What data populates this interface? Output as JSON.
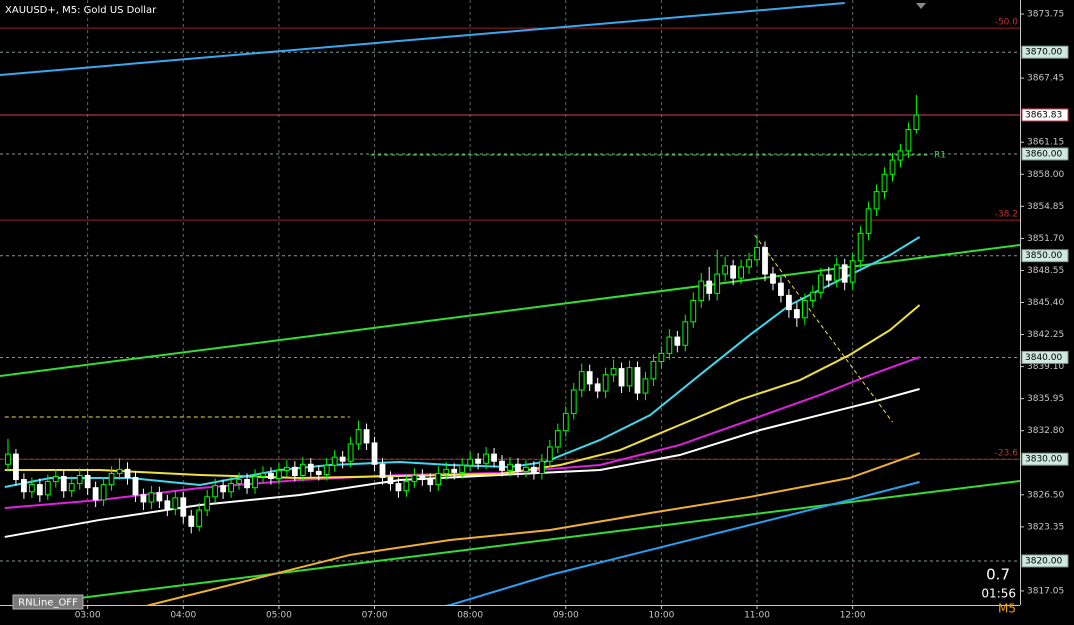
{
  "chart_data": {
    "type": "candlestick",
    "title": "XAUUSD+, M5:  Gold US Dollar",
    "categories": [
      null,
      null,
      null,
      null,
      null,
      null,
      null,
      null,
      null,
      null,
      "03:00",
      null,
      null,
      null,
      null,
      null,
      null,
      null,
      null,
      null,
      null,
      null,
      "04:00",
      null,
      null,
      null,
      null,
      null,
      null,
      null,
      null,
      null,
      null,
      null,
      "05:00",
      null,
      null,
      null,
      null,
      null,
      null,
      null,
      null,
      null,
      null,
      null,
      "07:00",
      null,
      null,
      null,
      null,
      null,
      null,
      null,
      null,
      null,
      null,
      null,
      "08:00",
      null,
      null,
      null,
      null,
      null,
      null,
      null,
      null,
      null,
      null,
      null,
      "09:00",
      null,
      null,
      null,
      null,
      null,
      null,
      null,
      null,
      null,
      null,
      null,
      "10:00",
      null,
      null,
      null,
      null,
      null,
      null,
      null,
      null,
      null,
      null,
      null,
      "11:00",
      null,
      null,
      null,
      null,
      null,
      null,
      null,
      null,
      null,
      null,
      null,
      "12:00",
      null,
      null,
      null,
      null,
      null,
      null,
      null,
      null
    ],
    "open": [
      3829.5,
      3830.5,
      3828.0,
      3826.8,
      3827.5,
      3826.5,
      3827.8,
      3828.3,
      3826.9,
      3827.6,
      3828.4,
      3827.2,
      3826.0,
      3827.5,
      3828.6,
      3829.0,
      3828.2,
      3826.5,
      3825.8,
      3826.7,
      3825.9,
      3825.1,
      3826.2,
      3824.4,
      3823.4,
      3825.0,
      3826.3,
      3827.4,
      3826.8,
      3827.6,
      3828.0,
      3827.2,
      3828.3,
      3828.6,
      3828.1,
      3828.9,
      3829.2,
      3828.4,
      3829.5,
      3828.8,
      3828.5,
      3829.4,
      3830.2,
      3829.8,
      3831.5,
      3832.9,
      3831.6,
      3829.5,
      3828.2,
      3827.6,
      3826.9,
      3827.8,
      3828.4,
      3828.0,
      3827.5,
      3828.6,
      3829.0,
      3828.7,
      3829.4,
      3830.0,
      3829.6,
      3830.5,
      3829.8,
      3828.9,
      3829.5,
      3828.8,
      3829.2,
      3828.6,
      3829.8,
      3831.2,
      3832.8,
      3834.5,
      3836.8,
      3838.6,
      3837.4,
      3836.7,
      3838.3,
      3838.9,
      3837.2,
      3839.0,
      3836.5,
      3837.9,
      3839.6,
      3840.4,
      3842.0,
      3841.2,
      3843.5,
      3845.6,
      3847.5,
      3846.3,
      3848.2,
      3849.0,
      3847.8,
      3848.9,
      3849.6,
      3850.8,
      3848.2,
      3847.3,
      3846.1,
      3844.7,
      3843.9,
      3845.6,
      3846.4,
      3848.1,
      3847.6,
      3849.1,
      3847.4,
      3849.5,
      3852.2,
      3854.6,
      3856.3,
      3858.0,
      3859.4,
      3860.3,
      3862.4
    ],
    "high": [
      3832.0,
      3831.0,
      3828.6,
      3828.2,
      3828.1,
      3828.5,
      3829.0,
      3828.9,
      3828.3,
      3829.1,
      3829.0,
      3827.8,
      3828.2,
      3829.3,
      3830.1,
      3829.7,
      3828.8,
      3827.1,
      3827.4,
      3827.3,
      3826.5,
      3826.9,
      3826.8,
      3825.0,
      3825.7,
      3827.0,
      3828.1,
      3828.0,
      3828.3,
      3828.7,
      3828.6,
      3829.0,
      3829.3,
      3829.2,
      3829.6,
      3829.9,
      3829.8,
      3830.2,
      3830.1,
      3829.4,
      3830.1,
      3830.9,
      3830.8,
      3832.2,
      3833.8,
      3833.5,
      3832.2,
      3830.1,
      3828.8,
      3828.2,
      3828.5,
      3829.1,
      3829.0,
      3828.6,
      3829.3,
      3829.7,
      3829.6,
      3830.1,
      3830.7,
      3830.6,
      3831.2,
      3831.1,
      3830.4,
      3830.2,
      3830.1,
      3829.9,
      3829.8,
      3830.5,
      3831.9,
      3833.5,
      3835.2,
      3837.5,
      3839.4,
      3839.3,
      3838.0,
      3839.0,
      3839.8,
      3839.5,
      3839.7,
      3839.6,
      3838.6,
      3840.3,
      3841.1,
      3842.8,
      3842.6,
      3844.2,
      3846.4,
      3848.3,
      3848.9,
      3850.6,
      3849.9,
      3849.6,
      3849.6,
      3850.3,
      3852.0,
      3851.4,
      3848.9,
      3847.9,
      3846.7,
      3845.4,
      3846.3,
      3847.1,
      3848.8,
      3848.9,
      3849.8,
      3849.7,
      3850.2,
      3852.9,
      3855.3,
      3857.0,
      3858.7,
      3860.1,
      3861.0,
      3863.1,
      3865.8
    ],
    "low": [
      3828.8,
      3827.4,
      3826.1,
      3826.2,
      3825.8,
      3826.0,
      3827.2,
      3826.2,
      3826.3,
      3827.0,
      3826.5,
      3825.3,
      3825.4,
      3826.9,
      3828.0,
      3827.5,
      3825.8,
      3825.0,
      3825.1,
      3825.2,
      3824.4,
      3824.5,
      3823.7,
      3822.7,
      3822.9,
      3824.4,
      3825.7,
      3826.1,
      3826.2,
      3827.0,
      3826.6,
      3826.6,
      3827.7,
      3827.5,
      3827.5,
      3828.3,
      3827.8,
      3827.8,
      3828.2,
      3827.9,
      3827.9,
      3828.8,
      3829.1,
      3829.2,
      3830.9,
      3830.9,
      3828.8,
      3827.5,
      3826.9,
      3826.2,
      3826.3,
      3827.2,
      3827.4,
      3826.8,
      3826.9,
      3828.0,
      3828.0,
      3828.1,
      3828.8,
      3829.0,
      3829.0,
      3829.2,
      3828.3,
      3828.3,
      3828.2,
      3828.2,
      3828.0,
      3828.0,
      3829.2,
      3830.6,
      3832.2,
      3833.9,
      3836.1,
      3836.7,
      3836.0,
      3836.0,
      3837.6,
      3836.5,
      3836.6,
      3835.8,
      3835.8,
      3837.2,
      3838.9,
      3839.8,
      3840.5,
      3840.6,
      3842.9,
      3844.9,
      3845.6,
      3845.6,
      3847.5,
      3847.1,
      3847.2,
      3848.2,
      3849.0,
      3847.5,
      3846.6,
      3845.4,
      3843.9,
      3843.0,
      3843.2,
      3844.9,
      3845.8,
      3846.9,
      3846.9,
      3846.6,
      3846.7,
      3848.8,
      3851.5,
      3853.9,
      3855.6,
      3857.3,
      3858.7,
      3859.6,
      3862.0
    ],
    "close": [
      3830.5,
      3828.0,
      3826.8,
      3827.5,
      3826.5,
      3827.8,
      3828.3,
      3826.9,
      3827.6,
      3828.4,
      3827.2,
      3826.0,
      3827.5,
      3828.6,
      3829.0,
      3828.2,
      3826.5,
      3825.8,
      3826.7,
      3825.9,
      3825.1,
      3826.2,
      3824.4,
      3823.4,
      3825.0,
      3826.3,
      3827.4,
      3826.8,
      3827.6,
      3828.0,
      3827.2,
      3828.3,
      3828.6,
      3828.1,
      3828.9,
      3829.2,
      3828.4,
      3829.5,
      3828.8,
      3828.5,
      3829.4,
      3830.2,
      3829.8,
      3831.5,
      3832.9,
      3831.6,
      3829.5,
      3828.2,
      3827.6,
      3826.9,
      3827.8,
      3828.4,
      3828.0,
      3827.5,
      3828.6,
      3829.0,
      3828.7,
      3829.4,
      3830.0,
      3829.6,
      3830.5,
      3829.8,
      3828.9,
      3829.5,
      3828.8,
      3829.2,
      3828.6,
      3829.8,
      3831.2,
      3832.8,
      3834.5,
      3836.8,
      3838.6,
      3837.4,
      3836.7,
      3838.3,
      3838.9,
      3837.2,
      3839.0,
      3836.5,
      3837.9,
      3839.6,
      3840.4,
      3842.0,
      3841.2,
      3843.5,
      3845.6,
      3847.5,
      3846.3,
      3848.2,
      3849.0,
      3847.8,
      3848.9,
      3849.6,
      3850.8,
      3848.2,
      3847.3,
      3846.1,
      3844.7,
      3843.9,
      3845.6,
      3846.4,
      3848.1,
      3847.6,
      3849.1,
      3847.4,
      3849.5,
      3852.2,
      3854.6,
      3856.3,
      3858.0,
      3859.4,
      3860.3,
      3862.4,
      3863.83
    ],
    "up_color": "#00ff00",
    "down_color": "#ffffff",
    "xlim": [
      -1,
      127
    ],
    "ylim": [
      3815.67,
      3875.13
    ],
    "yticks": [
      3873.75,
      3867.45,
      3861.15,
      {
        "value": 3858,
        "label": "3858.00"
      },
      3854.85,
      {
        "value": 3851.7,
        "label": "3851.70"
      },
      3848.55,
      {
        "value": 3845.4,
        "label": "3845.40"
      },
      3842.25,
      {
        "value": 3839.1,
        "label": "3839.10"
      },
      3835.95,
      {
        "value": 3832.8,
        "label": "3832.80"
      },
      {
        "value": 3826.5,
        "label": "3826.50"
      },
      3823.35,
      3817.05
    ],
    "grid": true,
    "levels": [
      {
        "value": 3870,
        "label": "3870.00"
      },
      {
        "value": 3860,
        "label": "3860.00"
      },
      {
        "value": 3850,
        "label": "3850.00"
      },
      {
        "value": 3840,
        "label": "3840.00"
      },
      {
        "value": 3830,
        "label": "3830.00"
      },
      {
        "value": 3820,
        "label": "3820.00"
      }
    ],
    "current_price": {
      "value": 3863.83,
      "label": "3863.83"
    },
    "fib_levels": [
      {
        "value": 3872.37,
        "label": "-50.0"
      },
      {
        "value": 3853.5,
        "label": "-38.2"
      },
      {
        "value": 3830.0,
        "label": "-23.6"
      }
    ],
    "lines": [
      {
        "color": "#3aa8f0",
        "x": [
          -1,
          105
        ],
        "values": [
          3867.76,
          3874.83
        ]
      },
      {
        "color": "#33dd33",
        "x": [
          -1,
          127
        ],
        "values": [
          3838.18,
          3851.05
        ]
      },
      {
        "color": "#33dd33",
        "x": [
          -1,
          127
        ],
        "values": [
          3815.38,
          3827.86
        ]
      },
      {
        "color": "#f0b030",
        "x": [
          9.7,
          17.8,
          30.4,
          42.9,
          55.5,
          68,
          80.6,
          93.1,
          105.6,
          114.4
        ],
        "values": [
          3813.7,
          3815.67,
          3818.13,
          3820.59,
          3822.06,
          3823.04,
          3824.71,
          3826.29,
          3828.15,
          3830.61
        ]
      },
      {
        "color": "#2a9ff0",
        "x": [
          44.2,
          55.5,
          68,
          80.6,
          93.1,
          105.6,
          114.4
        ],
        "values": [
          3813.7,
          3815.67,
          3818.62,
          3821.08,
          3823.53,
          3825.99,
          3827.76
        ]
      },
      {
        "color": "#ffffff",
        "x": [
          -0.4,
          11.5,
          24.1,
          36.6,
          49.2,
          61.7,
          74.3,
          84.3,
          94.4,
          104.4,
          109.4,
          114.4
        ],
        "values": [
          3822.36,
          3824.03,
          3825.5,
          3826.48,
          3827.96,
          3828.45,
          3828.94,
          3830.41,
          3832.87,
          3834.84,
          3835.82,
          3836.9
        ]
      },
      {
        "color": "#e020e0",
        "x": [
          -0.4,
          11.5,
          24.1,
          36.6,
          49.2,
          61.7,
          74.3,
          84.3,
          93.1,
          101.9,
          108.2,
          114.4
        ],
        "values": [
          3825.2,
          3825.99,
          3827.17,
          3827.96,
          3828.45,
          3828.64,
          3829.43,
          3831.4,
          3833.85,
          3836.31,
          3838.27,
          3840.04
        ]
      },
      {
        "color": "#f0e040",
        "x": [
          -0.4,
          11.5,
          24.1,
          36.6,
          49.2,
          61.7,
          69.3,
          76.8,
          84.3,
          91.8,
          99.4,
          105.6,
          110.7,
          114.4
        ],
        "values": [
          3828.94,
          3828.94,
          3828.45,
          3828.15,
          3828.35,
          3828.55,
          3829.43,
          3830.9,
          3833.36,
          3835.82,
          3837.78,
          3840.24,
          3842.7,
          3845.15
        ]
      },
      {
        "color": "#40d8f0",
        "x": [
          -0.4,
          5.3,
          15.3,
          24.1,
          34.1,
          40.4,
          49.2,
          55.5,
          63,
          67.4,
          74.3,
          80.6,
          86.8,
          93.1,
          98.1,
          103.1,
          106.9,
          110.7,
          114.4
        ],
        "values": [
          3827.27,
          3828.15,
          3828.15,
          3827.46,
          3828.94,
          3829.43,
          3829.73,
          3829.43,
          3829.23,
          3829.73,
          3831.89,
          3834.34,
          3838.27,
          3842.21,
          3845.15,
          3847.12,
          3848.59,
          3850.07,
          3851.84
        ]
      },
      {
        "color": "#f0e040",
        "dashed": true,
        "x": [
          93.7,
          111
        ],
        "values": [
          3852.03,
          3833.65
        ]
      },
      {
        "color": "#f0e040",
        "dashed": true,
        "x": [
          -0.4,
          42.9
        ],
        "values": [
          3834.15,
          3834.15
        ]
      },
      {
        "color": "#33dd33",
        "dashed": true,
        "label": "R1",
        "x": [
          45.5,
          115.7
        ],
        "values": [
          3859.9,
          3859.9
        ]
      }
    ]
  },
  "status": {
    "spread": "0.7",
    "timer": "01:56",
    "timeframe": "M5"
  },
  "button": "RNLine_OFF"
}
